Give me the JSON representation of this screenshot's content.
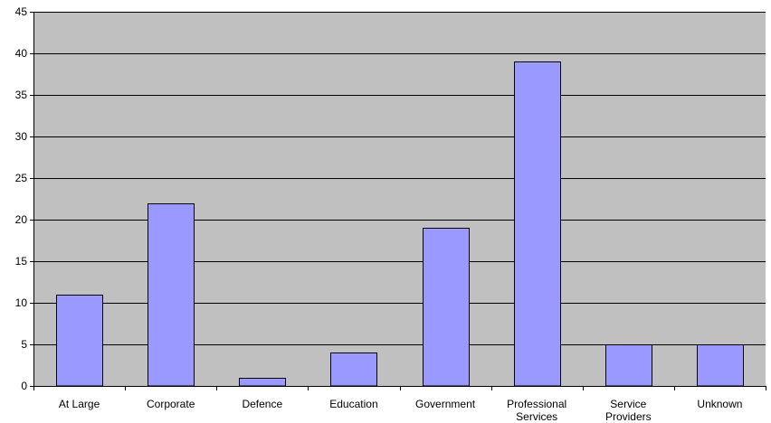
{
  "chart_data": {
    "type": "bar",
    "title": "",
    "xlabel": "",
    "ylabel": "",
    "categories": [
      "At Large",
      "Corporate",
      "Defence",
      "Education",
      "Government",
      "Professional Services",
      "Service Providers",
      "Unknown"
    ],
    "category_lines": [
      [
        "At Large"
      ],
      [
        "Corporate"
      ],
      [
        "Defence"
      ],
      [
        "Education"
      ],
      [
        "Government"
      ],
      [
        "Professional",
        "Services"
      ],
      [
        "Service",
        "Providers"
      ],
      [
        "Unknown"
      ]
    ],
    "values": [
      11,
      22,
      1,
      4,
      19,
      39,
      5,
      5
    ],
    "ylim": [
      0,
      45
    ],
    "yticks": [
      0,
      5,
      10,
      15,
      20,
      25,
      30,
      35,
      40,
      45
    ],
    "grid": true,
    "legend": "none",
    "colors": {
      "plot_background": "#c0c0c0",
      "bar_fill": "#9999ff",
      "bar_stroke": "#000000",
      "grid": "#000000",
      "axis": "#000000"
    }
  }
}
